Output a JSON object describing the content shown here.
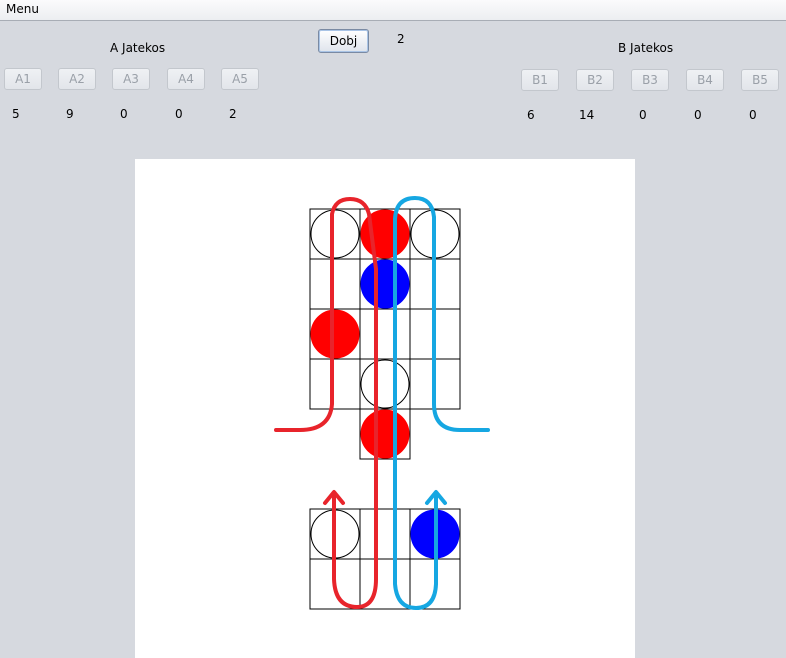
{
  "menu": {
    "label": "Menu"
  },
  "dice": {
    "button_label": "Dobj",
    "value": "2"
  },
  "player_a": {
    "title": "A Jatekos",
    "buttons": [
      "A1",
      "A2",
      "A3",
      "A4",
      "A5"
    ],
    "counts": [
      "5",
      "9",
      "0",
      "0",
      "2"
    ]
  },
  "player_b": {
    "title": "B Jatekos",
    "buttons": [
      "B1",
      "B2",
      "B3",
      "B4",
      "B5"
    ],
    "counts": [
      "6",
      "14",
      "0",
      "0",
      "0"
    ]
  },
  "board": {
    "top_grid_rows": 4,
    "bridge_rows": 1,
    "bottom_grid_rows": 2,
    "pieces": [
      {
        "area": "top",
        "row": 0,
        "col": 0,
        "fill": "none"
      },
      {
        "area": "top",
        "row": 0,
        "col": 1,
        "fill": "#ff0000"
      },
      {
        "area": "top",
        "row": 0,
        "col": 2,
        "fill": "none"
      },
      {
        "area": "top",
        "row": 1,
        "col": 1,
        "fill": "#0000ff"
      },
      {
        "area": "top",
        "row": 2,
        "col": 0,
        "fill": "#ff0000"
      },
      {
        "area": "top",
        "row": 3,
        "col": 1,
        "fill": "none"
      },
      {
        "area": "bridge",
        "row": 0,
        "col": 1,
        "fill": "#ff0000"
      },
      {
        "area": "bottom",
        "row": 0,
        "col": 0,
        "fill": "none"
      },
      {
        "area": "bottom",
        "row": 0,
        "col": 2,
        "fill": "#0000ff"
      }
    ],
    "path_colors": {
      "player_a": "#e8242b",
      "player_b": "#16a7e2"
    }
  }
}
